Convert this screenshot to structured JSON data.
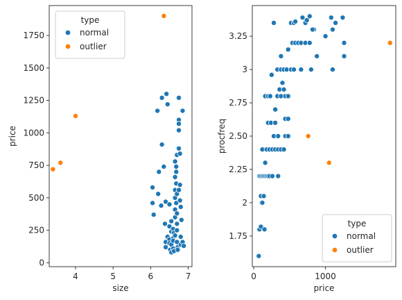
{
  "colors": {
    "normal": "#1f77b4",
    "outlier": "#ff7f0e"
  },
  "chart_data": [
    {
      "type": "scatter",
      "xlabel": "size",
      "ylabel": "price",
      "xlim": [
        3.3,
        7.1
      ],
      "ylim": [
        -30,
        1980
      ],
      "xticks": [
        4,
        5,
        6,
        7
      ],
      "yticks": [
        0,
        250,
        500,
        750,
        1000,
        1250,
        1500,
        1750
      ],
      "legend": {
        "title": "type",
        "placement": "top-left",
        "entries": [
          "normal",
          "outlier"
        ]
      },
      "series": [
        {
          "name": "normal",
          "points": [
            [
              6.05,
              580
            ],
            [
              6.05,
              460
            ],
            [
              6.08,
              370
            ],
            [
              6.18,
              1170
            ],
            [
              6.22,
              700
            ],
            [
              6.2,
              530
            ],
            [
              6.3,
              1270
            ],
            [
              6.3,
              910
            ],
            [
              6.28,
              440
            ],
            [
              6.35,
              740
            ],
            [
              6.4,
              470
            ],
            [
              6.42,
              1300
            ],
            [
              6.45,
              1220
            ],
            [
              6.38,
              300
            ],
            [
              6.4,
              160
            ],
            [
              6.4,
              120
            ],
            [
              6.45,
              200
            ],
            [
              6.5,
              450
            ],
            [
              6.5,
              280
            ],
            [
              6.5,
              180
            ],
            [
              6.5,
              150
            ],
            [
              6.52,
              100
            ],
            [
              6.55,
              80
            ],
            [
              6.55,
              240
            ],
            [
              6.55,
              320
            ],
            [
              6.55,
              140
            ],
            [
              6.6,
              190
            ],
            [
              6.6,
              260
            ],
            [
              6.6,
              170
            ],
            [
              6.6,
              110
            ],
            [
              6.62,
              90
            ],
            [
              6.62,
              230
            ],
            [
              6.65,
              780
            ],
            [
              6.65,
              660
            ],
            [
              6.65,
              560
            ],
            [
              6.65,
              500
            ],
            [
              6.65,
              410
            ],
            [
              6.65,
              350
            ],
            [
              6.65,
              210
            ],
            [
              6.68,
              740
            ],
            [
              6.68,
              700
            ],
            [
              6.68,
              610
            ],
            [
              6.68,
              460
            ],
            [
              6.7,
              830
            ],
            [
              6.7,
              530
            ],
            [
              6.7,
              380
            ],
            [
              6.7,
              300
            ],
            [
              6.7,
              250
            ],
            [
              6.7,
              160
            ],
            [
              6.72,
              120
            ],
            [
              6.72,
              100
            ],
            [
              6.75,
              1270
            ],
            [
              6.75,
              1100
            ],
            [
              6.75,
              1070
            ],
            [
              6.75,
              1020
            ],
            [
              6.75,
              880
            ],
            [
              6.75,
              560
            ],
            [
              6.78,
              840
            ],
            [
              6.78,
              600
            ],
            [
              6.78,
              480
            ],
            [
              6.8,
              430
            ],
            [
              6.8,
              200
            ],
            [
              6.8,
              140
            ],
            [
              6.82,
              330
            ],
            [
              6.85,
              1170
            ],
            [
              6.85,
              160
            ],
            [
              6.88,
              130
            ]
          ]
        },
        {
          "name": "outlier",
          "points": [
            [
              3.4,
              720
            ],
            [
              3.6,
              770
            ],
            [
              4.0,
              1130
            ],
            [
              6.35,
              1900
            ]
          ]
        }
      ]
    },
    {
      "type": "scatter",
      "xlabel": "price",
      "ylabel": "procfreq",
      "xlim": [
        -20,
        1980
      ],
      "ylim": [
        1.52,
        3.48
      ],
      "xticks": [
        0,
        1000
      ],
      "yticks": [
        1.75,
        2.0,
        2.25,
        2.5,
        2.75,
        3.0,
        3.25
      ],
      "legend": {
        "title": "type",
        "placement": "bottom-right",
        "entries": [
          "normal",
          "outlier"
        ]
      },
      "series": [
        {
          "name": "normal",
          "points": [
            [
              70,
              1.6
            ],
            [
              80,
              1.8
            ],
            [
              100,
              1.82
            ],
            [
              110,
              2.0
            ],
            [
              120,
              2.0
            ],
            [
              100,
              2.05
            ],
            [
              140,
              2.05
            ],
            [
              150,
              1.8
            ],
            [
              80,
              2.2
            ],
            [
              100,
              2.2
            ],
            [
              120,
              2.2
            ],
            [
              140,
              2.2
            ],
            [
              160,
              2.2
            ],
            [
              180,
              2.2
            ],
            [
              200,
              2.2
            ],
            [
              220,
              2.2
            ],
            [
              260,
              2.2
            ],
            [
              340,
              2.2
            ],
            [
              120,
              2.4
            ],
            [
              180,
              2.4
            ],
            [
              220,
              2.4
            ],
            [
              260,
              2.4
            ],
            [
              300,
              2.4
            ],
            [
              340,
              2.4
            ],
            [
              380,
              2.4
            ],
            [
              420,
              2.4
            ],
            [
              160,
              2.3
            ],
            [
              200,
              2.6
            ],
            [
              240,
              2.6
            ],
            [
              300,
              2.6
            ],
            [
              280,
              2.5
            ],
            [
              340,
              2.5
            ],
            [
              440,
              2.5
            ],
            [
              480,
              2.5
            ],
            [
              300,
              2.7
            ],
            [
              330,
              2.8
            ],
            [
              360,
              2.85
            ],
            [
              380,
              2.8
            ],
            [
              420,
              2.85
            ],
            [
              440,
              2.8
            ],
            [
              480,
              2.8
            ],
            [
              440,
              2.63
            ],
            [
              480,
              2.63
            ],
            [
              160,
              2.8
            ],
            [
              200,
              2.8
            ],
            [
              230,
              2.8
            ],
            [
              250,
              2.96
            ],
            [
              330,
              3.0
            ],
            [
              380,
              3.0
            ],
            [
              400,
              2.9
            ],
            [
              420,
              3.0
            ],
            [
              460,
              3.0
            ],
            [
              520,
              3.0
            ],
            [
              560,
              3.0
            ],
            [
              660,
              3.0
            ],
            [
              800,
              3.0
            ],
            [
              1100,
              3.0
            ],
            [
              380,
              3.1
            ],
            [
              480,
              3.15
            ],
            [
              540,
              3.2
            ],
            [
              580,
              3.2
            ],
            [
              620,
              3.2
            ],
            [
              660,
              3.2
            ],
            [
              720,
              3.2
            ],
            [
              780,
              3.2
            ],
            [
              880,
              3.1
            ],
            [
              1000,
              3.25
            ],
            [
              1100,
              3.3
            ],
            [
              840,
              3.3
            ],
            [
              720,
              3.35
            ],
            [
              740,
              3.37
            ],
            [
              780,
              3.4
            ],
            [
              820,
              3.3
            ],
            [
              520,
              3.35
            ],
            [
              560,
              3.35
            ],
            [
              580,
              3.36
            ],
            [
              680,
              3.39
            ],
            [
              1080,
              3.39
            ],
            [
              1140,
              3.35
            ],
            [
              1240,
              3.39
            ],
            [
              1260,
              3.2
            ],
            [
              1260,
              3.1
            ],
            [
              280,
              3.35
            ]
          ]
        },
        {
          "name": "outlier",
          "points": [
            [
              760,
              2.5
            ],
            [
              1050,
              2.3
            ],
            [
              1900,
              3.2
            ]
          ]
        }
      ]
    }
  ]
}
